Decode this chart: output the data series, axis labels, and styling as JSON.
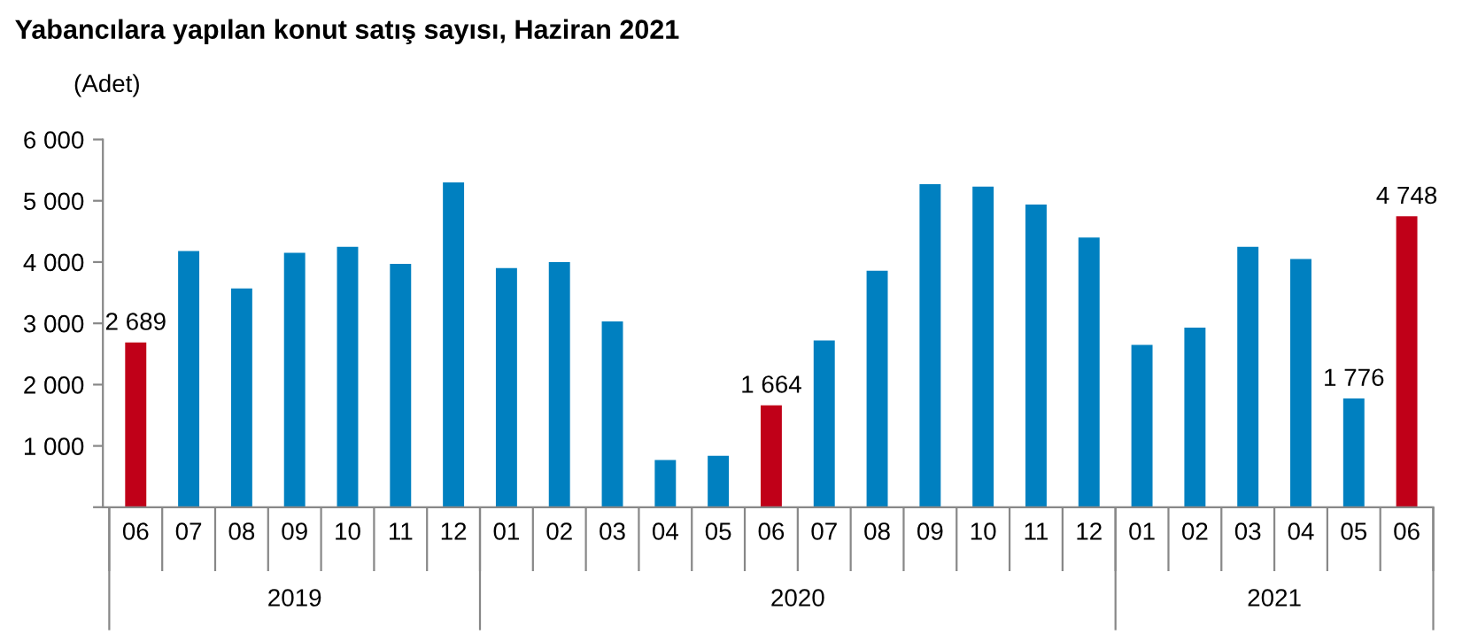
{
  "chart_data": {
    "type": "bar",
    "title": "Yabancılara yapılan konut satış sayısı, Haziran 2021",
    "ylabel": "(Adet)",
    "categories": [
      "06",
      "07",
      "08",
      "09",
      "10",
      "11",
      "12",
      "01",
      "02",
      "03",
      "04",
      "05",
      "06",
      "07",
      "08",
      "09",
      "10",
      "11",
      "12",
      "01",
      "02",
      "03",
      "04",
      "05",
      "06"
    ],
    "values": [
      2689,
      4180,
      3570,
      4150,
      4250,
      3970,
      5300,
      3900,
      4000,
      3030,
      770,
      840,
      1664,
      2720,
      3860,
      5270,
      5230,
      4940,
      4400,
      2650,
      2930,
      4250,
      4050,
      1776,
      4748
    ],
    "colors": [
      "#c00018",
      "#0080c0",
      "#0080c0",
      "#0080c0",
      "#0080c0",
      "#0080c0",
      "#0080c0",
      "#0080c0",
      "#0080c0",
      "#0080c0",
      "#0080c0",
      "#0080c0",
      "#c00018",
      "#0080c0",
      "#0080c0",
      "#0080c0",
      "#0080c0",
      "#0080c0",
      "#0080c0",
      "#0080c0",
      "#0080c0",
      "#0080c0",
      "#0080c0",
      "#0080c0",
      "#c00018"
    ],
    "value_labels": [
      "2 689",
      null,
      null,
      null,
      null,
      null,
      null,
      null,
      null,
      null,
      null,
      null,
      "1 664",
      null,
      null,
      null,
      null,
      null,
      null,
      null,
      null,
      null,
      null,
      "1 776",
      "4 748"
    ],
    "annotations": [
      "2019",
      "2020",
      "2021"
    ],
    "ylim": [
      0,
      6000
    ],
    "yticks": [
      {
        "value": 0,
        "label": null
      },
      {
        "value": 1000,
        "label": "1 000"
      },
      {
        "value": 2000,
        "label": "2 000"
      },
      {
        "value": 3000,
        "label": "3 000"
      },
      {
        "value": 4000,
        "label": "4 000"
      },
      {
        "value": 5000,
        "label": "5 000"
      },
      {
        "value": 6000,
        "label": "6 000"
      }
    ],
    "grid": false,
    "legend": false
  }
}
